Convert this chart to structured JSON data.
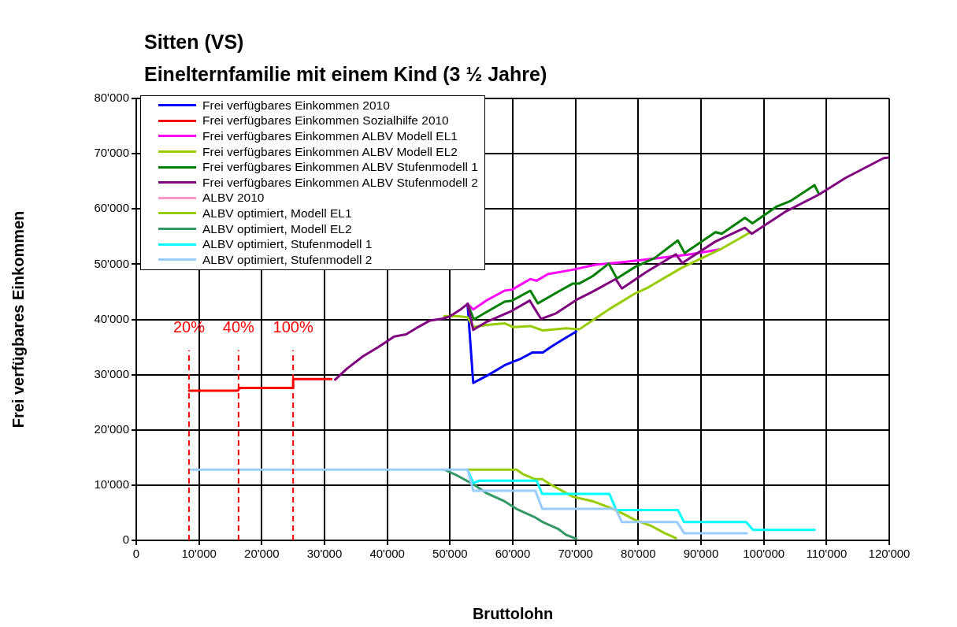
{
  "chart_data": {
    "type": "line",
    "title": "Sitten (VS)",
    "subtitle": "Einelternfamilie mit einem Kind (3 ½ Jahre)",
    "xlabel": "Bruttolohn",
    "ylabel": "Frei verfügbares Einkommen",
    "xlim": [
      0,
      120000
    ],
    "ylim": [
      0,
      80000
    ],
    "xticks": [
      0,
      {
        "value": 10000,
        "label": "10'000"
      },
      {
        "value": 20000,
        "label": "20'000"
      },
      {
        "value": 30000,
        "label": "30'000"
      },
      {
        "value": 40000,
        "label": "40'000"
      },
      {
        "value": 50000,
        "label": "50'000"
      },
      {
        "value": 60000,
        "label": "60'000"
      },
      {
        "value": 70000,
        "label": "70'000"
      },
      {
        "value": 80000,
        "label": "80'000"
      },
      {
        "value": 90000,
        "label": "90'000"
      },
      {
        "value": 100000,
        "label": "100'000"
      },
      {
        "value": 110000,
        "label": "110'000"
      },
      {
        "value": 120000,
        "label": "120'000"
      }
    ],
    "yticks": [
      0,
      {
        "value": 10000,
        "label": "10'000"
      },
      {
        "value": 20000,
        "label": "20'000"
      },
      {
        "value": 30000,
        "label": "30'000"
      },
      {
        "value": 40000,
        "label": "40'000"
      },
      {
        "value": 50000,
        "label": "50'000"
      },
      {
        "value": 60000,
        "label": "60'000"
      },
      {
        "value": 70000,
        "label": "70'000"
      },
      {
        "value": 80000,
        "label": "80'000"
      }
    ],
    "grid": true,
    "legend": "top left",
    "marker": "none",
    "line_style": "solid",
    "ref_lines": [
      {
        "axis": "x",
        "value": 8400,
        "color": "#ff0000",
        "line_style": "dashed"
      },
      {
        "axis": "x",
        "value": 16300,
        "color": "#ff0000",
        "line_style": "dashed"
      },
      {
        "axis": "x",
        "value": 25000,
        "color": "#ff0000",
        "line_style": "dashed"
      }
    ],
    "annotations": [
      "20%",
      "40%",
      "100%"
    ],
    "series": [
      {
        "name": "Frei verfügbares Einkommen 2010",
        "color": "#0000ff",
        "x": [
          52800,
          53700,
          56200,
          58700,
          61300,
          63100,
          64800,
          66300,
          68200,
          70100
        ],
        "values": [
          42800,
          28500,
          30000,
          31700,
          32900,
          34000,
          34000,
          35200,
          36500,
          37800
        ]
      },
      {
        "name": "Frei verfügbares Einkommen Sozialhilfe 2010",
        "color": "#ff0000",
        "x": [
          8400,
          16200,
          16500,
          25000,
          25000,
          31100
        ],
        "values": [
          27100,
          27100,
          27600,
          27600,
          29200,
          29200
        ]
      },
      {
        "name": "Frei verfügbares Einkommen ALBV Modell EL1",
        "color": "#ff00ff",
        "x": [
          52800,
          53700,
          55900,
          58700,
          59900,
          62800,
          63800,
          65600,
          69600,
          73200,
          77900,
          83100,
          88400,
          93100
        ],
        "values": [
          42800,
          41800,
          43500,
          45200,
          45400,
          47300,
          47000,
          48200,
          49000,
          49900,
          50400,
          51100,
          51800,
          52700
        ]
      },
      {
        "name": "Frei verfügbares Einkommen ALBV Modell EL2",
        "color": "#99cc00",
        "x": [
          49100,
          51000,
          52800,
          53700,
          55900,
          58700,
          60100,
          62800,
          64800,
          68500,
          70600,
          75300,
          79500,
          81600,
          87000,
          93100,
          97900
        ],
        "values": [
          40600,
          40600,
          40400,
          38600,
          39000,
          39300,
          38600,
          38800,
          38000,
          38400,
          38200,
          41800,
          44700,
          45800,
          49400,
          52700,
          55800
        ]
      },
      {
        "name": "Frei verfügbares Einkommen ALBV Stufenmodell 1",
        "color": "#008000",
        "x": [
          52800,
          53800,
          55900,
          58700,
          59900,
          62800,
          64000,
          67200,
          69600,
          70600,
          72700,
          75300,
          76600,
          79500,
          82600,
          86300,
          87400,
          92300,
          93300,
          97000,
          98200,
          102000,
          104200,
          108100,
          108800
        ],
        "values": [
          42800,
          40000,
          41400,
          43200,
          43400,
          45200,
          42900,
          45000,
          46500,
          46500,
          47800,
          50100,
          47400,
          49500,
          51100,
          54300,
          52000,
          55800,
          55500,
          58400,
          57400,
          60400,
          61400,
          64300,
          62700
        ]
      },
      {
        "name": "Frei verfügbares Einkommen ALBV Stufenmodell 2",
        "color": "#800080",
        "x": [
          31700,
          33600,
          36100,
          38600,
          41100,
          43000,
          44900,
          46800,
          48700,
          49900,
          51800,
          52800,
          53700,
          55900,
          59600,
          62700,
          64500,
          66900,
          70100,
          72700,
          76400,
          77400,
          81300,
          86000,
          87000,
          92300,
          97000,
          98100,
          103600,
          108800,
          113000,
          119100,
          120000
        ],
        "values": [
          29100,
          31100,
          33300,
          35000,
          36900,
          37300,
          38600,
          39800,
          40100,
          40500,
          41900,
          42800,
          38100,
          39600,
          41400,
          43400,
          40100,
          41100,
          43500,
          45000,
          47300,
          45600,
          48600,
          51800,
          50200,
          54100,
          56600,
          55500,
          59600,
          62600,
          65600,
          69200,
          69300
        ]
      },
      {
        "name": "ALBV 2010",
        "color": "#ff99cc"
      },
      {
        "name": "ALBV optimiert, Modell EL1",
        "color": "#99cc00",
        "x": [
          52800,
          60600,
          61600,
          63500,
          64700,
          65900,
          69600,
          72700,
          76400,
          79500,
          82100,
          84200,
          86000
        ],
        "values": [
          12800,
          12800,
          12000,
          11100,
          11100,
          10200,
          7900,
          7100,
          5500,
          3700,
          2600,
          1300,
          400
        ]
      },
      {
        "name": "ALBV optimiert, Modell EL2",
        "color": "#339966",
        "x": [
          49100,
          51200,
          53800,
          55900,
          58500,
          60600,
          63500,
          64800,
          67200,
          68500,
          70100
        ],
        "values": [
          12800,
          11700,
          10100,
          8500,
          7200,
          5700,
          4200,
          3300,
          2100,
          1000,
          300
        ]
      },
      {
        "name": "ALBV optimiert, Stufenmodell 1",
        "color": "#00ffff",
        "x": [
          52800,
          53700,
          54700,
          63800,
          64700,
          75400,
          76500,
          86300,
          87300,
          97200,
          98300,
          108100
        ],
        "values": [
          12800,
          10400,
          10800,
          10800,
          8400,
          8400,
          5500,
          5500,
          3300,
          3300,
          1900,
          1900
        ]
      },
      {
        "name": "ALBV optimiert, Stufenmodell 2",
        "color": "#99ccff",
        "x": [
          8400,
          52800,
          53700,
          63600,
          64700,
          76400,
          77400,
          86200,
          87300,
          97300
        ],
        "values": [
          12800,
          12800,
          9000,
          9000,
          5700,
          5700,
          3300,
          3300,
          1300,
          1300
        ]
      }
    ]
  }
}
